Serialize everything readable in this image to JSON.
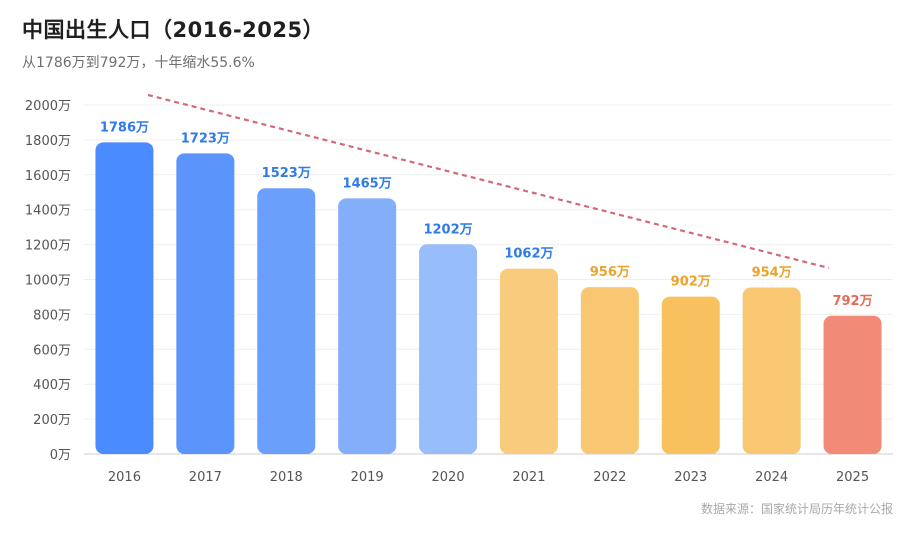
{
  "title": "中国出生人口（2016-2025）",
  "subtitle": "从1786万到792万，十年缩水55.6%",
  "source": "数据来源：国家统计局历年统计公报",
  "chart_data": {
    "type": "bar",
    "categories": [
      "2016",
      "2017",
      "2018",
      "2019",
      "2020",
      "2021",
      "2022",
      "2023",
      "2024",
      "2025"
    ],
    "values": [
      1786,
      1723,
      1523,
      1465,
      1202,
      1062,
      956,
      902,
      954,
      792
    ],
    "data_labels": [
      "1786万",
      "1723万",
      "1523万",
      "1465万",
      "1202万",
      "1062万",
      "956万",
      "902万",
      "954万",
      "792万"
    ],
    "y_ticks": [
      0,
      200,
      400,
      600,
      800,
      1000,
      1200,
      1400,
      1600,
      1800,
      2000
    ],
    "y_tick_labels": [
      "0万",
      "200万",
      "400万",
      "600万",
      "800万",
      "1000万",
      "1200万",
      "1400万",
      "1600万",
      "1800万",
      "2000万"
    ],
    "ylim": [
      0,
      2000
    ],
    "grid": true,
    "trend_line": {
      "style": "dashed",
      "color": "#d4697a"
    },
    "bar_colors": [
      "#4a8cff",
      "#5b95fb",
      "#6a9ffb",
      "#82aefa",
      "#97bdfa",
      "#f9cb7c",
      "#f9c772",
      "#f9c15e",
      "#f9c772",
      "#f28a78"
    ],
    "label_colors": [
      "#2f7be8",
      "#2f7be8",
      "#2f7be8",
      "#2f7be8",
      "#2f7be8",
      "#2f7be8",
      "#eba32c",
      "#eba32c",
      "#eba32c",
      "#e56b56"
    ]
  }
}
